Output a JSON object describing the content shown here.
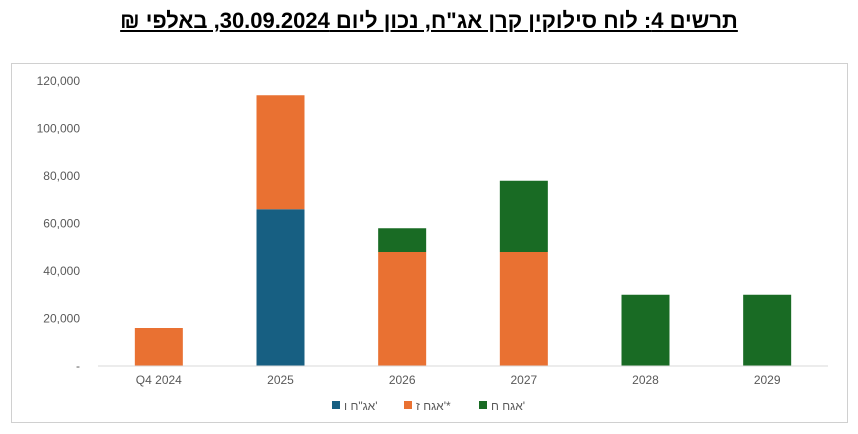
{
  "title": "תרשים 4: לוח סילוקין קרן אג\"ח, נכון ליום 30.09.2024, באלפי ₪",
  "chart_data": {
    "type": "bar",
    "stacked": true,
    "categories": [
      "Q4 2024",
      "2025",
      "2026",
      "2027",
      "2028",
      "2029"
    ],
    "series": [
      {
        "name": "אג\"ח ו'",
        "color": "#175f82",
        "values": [
          0,
          66000,
          0,
          0,
          0,
          0
        ]
      },
      {
        "name": "אגח ז'*",
        "color": "#e97132",
        "values": [
          16000,
          48000,
          48000,
          48000,
          0,
          0
        ]
      },
      {
        "name": "אגח ח'",
        "color": "#196b24",
        "values": [
          0,
          0,
          10000,
          30000,
          30000,
          30000
        ]
      }
    ],
    "ylim": [
      0,
      120000
    ],
    "yticks": [
      0,
      20000,
      40000,
      60000,
      80000,
      100000,
      120000
    ],
    "ytick_labels": [
      "-",
      "20,000",
      "40,000",
      "60,000",
      "80,000",
      "100,000",
      "120,000"
    ],
    "grid": false,
    "legend_position": "bottom"
  }
}
